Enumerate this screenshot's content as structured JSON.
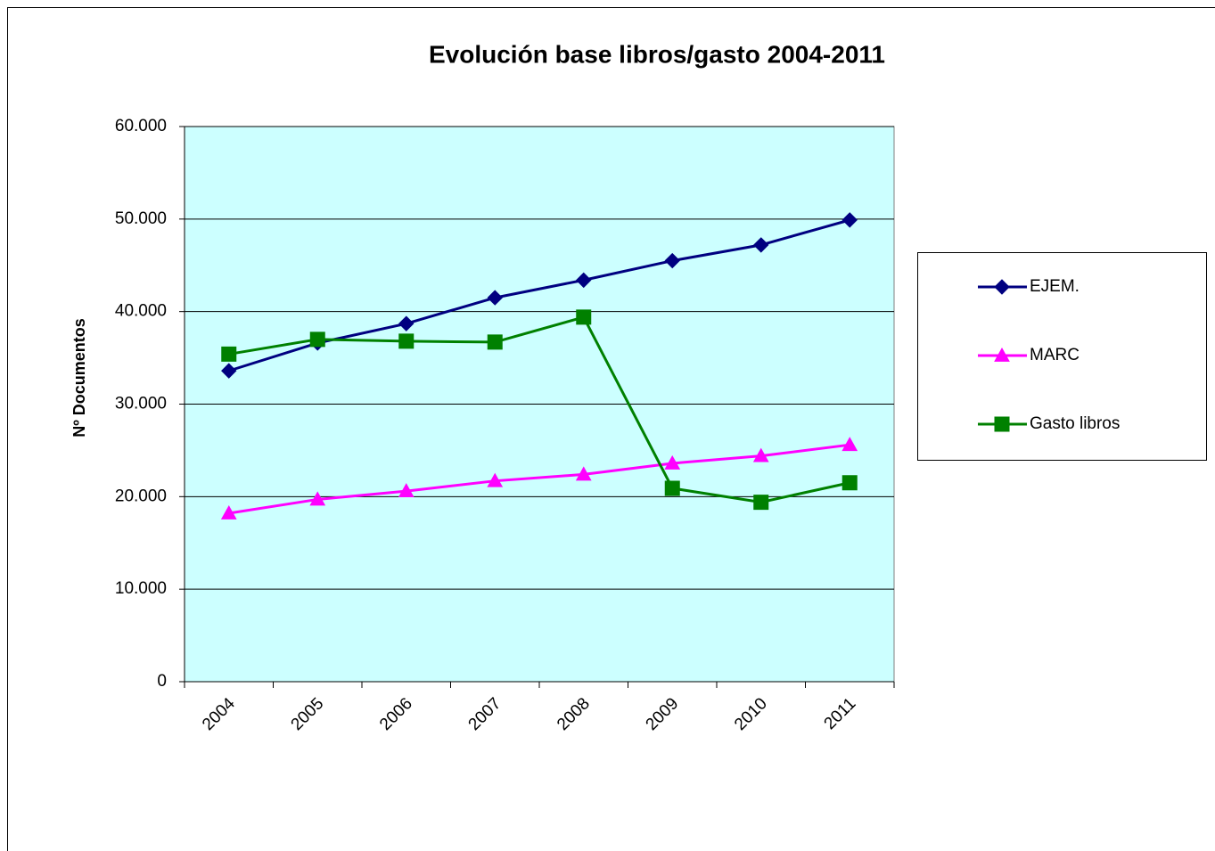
{
  "chart_data": {
    "type": "line",
    "title": "Evolución base libros/gasto 2004-2011",
    "y_label": "Nº Documentos",
    "categories": [
      "2004",
      "2005",
      "2006",
      "2007",
      "2008",
      "2009",
      "2010",
      "2011"
    ],
    "series": [
      {
        "name": "EJEM.",
        "color": "#000080",
        "marker": "diamond",
        "values": [
          33600,
          36600,
          38700,
          41500,
          43400,
          45500,
          47200,
          49900
        ]
      },
      {
        "name": "MARC",
        "color": "#ff00ff",
        "marker": "triangle",
        "values": [
          18200,
          19700,
          20600,
          21700,
          22400,
          23600,
          24400,
          25600
        ]
      },
      {
        "name": "Gasto libros",
        "color": "#008000",
        "marker": "square",
        "values": [
          35400,
          37000,
          36800,
          36700,
          39400,
          20900,
          19400,
          21500
        ]
      }
    ],
    "ylim": [
      0,
      60000
    ],
    "yticks": [
      0,
      {
        "value": 10000,
        "label": "10.000"
      },
      {
        "value": 20000,
        "label": "20.000"
      },
      {
        "value": 30000,
        "label": "30.000"
      },
      {
        "value": 40000,
        "label": "40.000"
      },
      {
        "value": 50000,
        "label": "50.000"
      },
      {
        "value": 60000,
        "label": "60.000"
      }
    ],
    "grid": true,
    "legend": "right",
    "plot_background": "#ccffff"
  }
}
